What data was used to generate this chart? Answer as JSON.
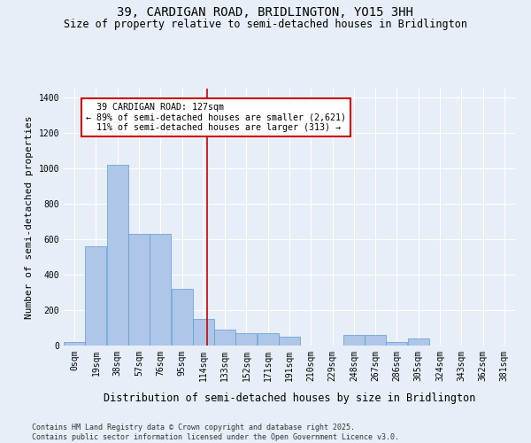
{
  "title": "39, CARDIGAN ROAD, BRIDLINGTON, YO15 3HH",
  "subtitle": "Size of property relative to semi-detached houses in Bridlington",
  "xlabel": "Distribution of semi-detached houses by size in Bridlington",
  "ylabel": "Number of semi-detached properties",
  "bin_labels": [
    "0sqm",
    "19sqm",
    "38sqm",
    "57sqm",
    "76sqm",
    "95sqm",
    "114sqm",
    "133sqm",
    "152sqm",
    "171sqm",
    "191sqm",
    "210sqm",
    "229sqm",
    "248sqm",
    "267sqm",
    "286sqm",
    "305sqm",
    "324sqm",
    "343sqm",
    "362sqm",
    "381sqm"
  ],
  "bar_heights": [
    20,
    560,
    1020,
    630,
    630,
    320,
    150,
    90,
    70,
    70,
    50,
    0,
    0,
    60,
    60,
    20,
    40,
    0,
    0,
    0,
    0
  ],
  "bar_color": "#aec6e8",
  "bar_edge_color": "#5b9bd5",
  "property_size": 127,
  "property_label": "39 CARDIGAN ROAD: 127sqm",
  "pct_smaller": 89,
  "pct_larger": 11,
  "count_smaller": 2621,
  "count_larger": 313,
  "vline_color": "#cc0000",
  "annotation_box_color": "#cc0000",
  "ylim": [
    0,
    1450
  ],
  "yticks": [
    0,
    200,
    400,
    600,
    800,
    1000,
    1200,
    1400
  ],
  "bg_color": "#e8eef7",
  "plot_bg_color": "#e8eef7",
  "footer": "Contains HM Land Registry data © Crown copyright and database right 2025.\nContains public sector information licensed under the Open Government Licence v3.0.",
  "title_fontsize": 10,
  "subtitle_fontsize": 8.5,
  "ylabel_fontsize": 8,
  "xlabel_fontsize": 8.5,
  "annotation_fontsize": 7.2,
  "footer_fontsize": 6.0,
  "tick_fontsize": 7
}
